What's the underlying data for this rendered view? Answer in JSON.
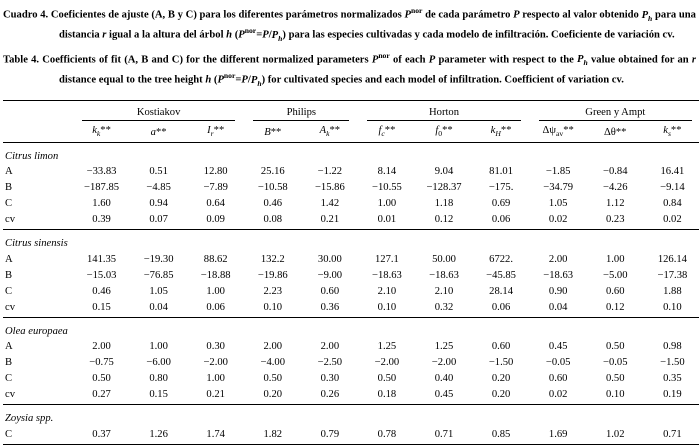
{
  "colors": {
    "text": "#000000",
    "background": "#ffffff"
  },
  "captions": {
    "spanish_html": "Cuadro 4. Coeficientes de ajuste (A, B y C) para los diferentes par&aacute;metros normalizados <i>P</i><sup>nor</sup> de cada par&aacute;metro <i>P</i> respecto al valor obtenido <i>P<sub>h</sub></i> para una distancia <i>r</i> igual a la altura del &aacute;rbol <i>h</i> (<i>P</i><sup>nor</sup>=<i>P</i>/<i>P<sub>h</sub></i>) para las especies cultivadas y cada modelo de infiltraci&oacute;n. Coeficiente de variaci&oacute;n cv.",
    "english_html": "Table 4. Coefficients of fit (A, B and C) for the different normalized parameters <i>P</i><sup>nor</sup> of each <i>P</i> parameter with respect to the <i>P<sub>h</sub></i> value obtained for an <i>r</i> distance equal to the tree height <i>h</i> (<i>P</i><sup>nor</sup>=<i>P</i>/<i>P<sub>h</sub></i>) for cultivated species and each model of infiltration. Coefficient of variation cv."
  },
  "table": {
    "groups": [
      {
        "label": "Kostiakov",
        "span": 3
      },
      {
        "label": "Philips",
        "span": 2
      },
      {
        "label": "Horton",
        "span": 3
      },
      {
        "label": "Green y Ampt",
        "span": 3
      }
    ],
    "columns": [
      {
        "name": "k_k",
        "html": "<i>k<sub>k</sub></i>**"
      },
      {
        "name": "a",
        "html": "<i>a</i>**"
      },
      {
        "name": "I_r",
        "html": "<i>I<sub>r</sub></i>**"
      },
      {
        "name": "B",
        "html": "<i>B</i>**"
      },
      {
        "name": "A_k",
        "html": "<i>A<sub>k</sub></i>**"
      },
      {
        "name": "f_c",
        "html": "<i>f<sub>c</sub></i>**"
      },
      {
        "name": "f_0",
        "html": "<i>f</i><sub>0</sub>**"
      },
      {
        "name": "k_H",
        "html": "<i>k<sub>H</sub></i>**"
      },
      {
        "name": "delta_psi_av",
        "html": "&Delta;&psi;<sub>av</sub>**"
      },
      {
        "name": "delta_theta",
        "html": "&Delta;&theta;**"
      },
      {
        "name": "k_s",
        "html": "<i>k<sub>s</sub></i>**"
      }
    ],
    "sections": [
      {
        "species": "Citrus limon",
        "rows": [
          {
            "label": "A",
            "values": [
              "−33.83",
              "0.51",
              "12.80",
              "25.16",
              "−1.22",
              "8.14",
              "9.04",
              "81.01",
              "−1.85",
              "−0.84",
              "16.41"
            ]
          },
          {
            "label": "B",
            "values": [
              "−187.85",
              "−4.85",
              "−7.89",
              "−10.58",
              "−15.86",
              "−10.55",
              "−128.37",
              "−175.",
              "−34.79",
              "−4.26",
              "−9.14"
            ]
          },
          {
            "label": "C",
            "values": [
              "1.60",
              "0.94",
              "0.64",
              "0.46",
              "1.42",
              "1.00",
              "1.18",
              "0.69",
              "1.05",
              "1.12",
              "0.84"
            ]
          },
          {
            "label": "cv",
            "values": [
              "0.39",
              "0.07",
              "0.09",
              "0.08",
              "0.21",
              "0.01",
              "0.12",
              "0.06",
              "0.02",
              "0.23",
              "0.02"
            ]
          }
        ]
      },
      {
        "species": "Citrus sinensis",
        "rows": [
          {
            "label": "A",
            "values": [
              "141.35",
              "−19.30",
              "88.62",
              "132.2",
              "30.00",
              "127.1",
              "50.00",
              "6722.",
              "2.00",
              "1.00",
              "126.14"
            ]
          },
          {
            "label": "B",
            "values": [
              "−15.03",
              "−76.85",
              "−18.88",
              "−19.86",
              "−9.00",
              "−18.63",
              "−18.63",
              "−45.85",
              "−18.63",
              "−5.00",
              "−17.38"
            ]
          },
          {
            "label": "C",
            "values": [
              "0.46",
              "1.05",
              "1.00",
              "2.23",
              "0.60",
              "2.10",
              "2.10",
              "28.14",
              "0.90",
              "0.60",
              "1.88"
            ]
          },
          {
            "label": "cv",
            "values": [
              "0.15",
              "0.04",
              "0.06",
              "0.10",
              "0.36",
              "0.10",
              "0.32",
              "0.06",
              "0.04",
              "0.12",
              "0.10"
            ]
          }
        ]
      },
      {
        "species": "Olea europaea",
        "rows": [
          {
            "label": "A",
            "values": [
              "2.00",
              "1.00",
              "0.30",
              "2.00",
              "2.00",
              "1.25",
              "1.25",
              "0.60",
              "0.45",
              "0.50",
              "0.98"
            ]
          },
          {
            "label": "B",
            "values": [
              "−0.75",
              "−6.00",
              "−2.00",
              "−4.00",
              "−2.50",
              "−2.00",
              "−2.00",
              "−1.50",
              "−0.05",
              "−0.05",
              "−1.50"
            ]
          },
          {
            "label": "C",
            "values": [
              "0.50",
              "0.80",
              "1.00",
              "0.50",
              "0.30",
              "0.50",
              "0.40",
              "0.20",
              "0.60",
              "0.50",
              "0.35"
            ]
          },
          {
            "label": "cv",
            "values": [
              "0.27",
              "0.15",
              "0.21",
              "0.20",
              "0.26",
              "0.18",
              "0.45",
              "0.20",
              "0.02",
              "0.10",
              "0.19"
            ]
          }
        ]
      },
      {
        "species": "Zoysia spp.",
        "rows": [
          {
            "label": "C",
            "values": [
              "0.37",
              "1.26",
              "1.74",
              "1.82",
              "0.79",
              "0.78",
              "0.71",
              "0.85",
              "1.69",
              "1.02",
              "0.71"
            ]
          }
        ]
      }
    ]
  }
}
